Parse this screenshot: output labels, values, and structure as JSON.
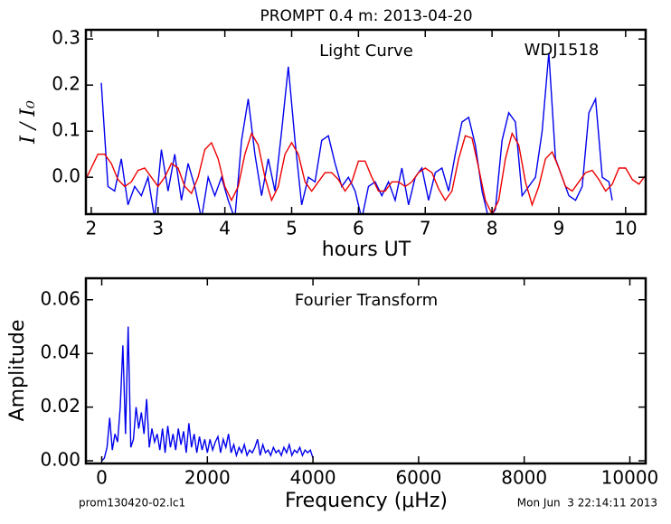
{
  "title": "PROMPT 0.4 m:  2013-04-20",
  "footer": {
    "left": "prom130420-02.lc1",
    "right": "Mon Jun  3 22:14:11 2013"
  },
  "chart_data": [
    {
      "type": "line",
      "annotations": [
        "Light Curve",
        "WDJ1518"
      ],
      "xlabel": "hours UT",
      "ylabel": "I / I₀",
      "xlim": [
        1.92,
        10.3
      ],
      "ylim": [
        -0.08,
        0.32
      ],
      "xticks": [
        2,
        3,
        4,
        5,
        6,
        7,
        8,
        9,
        10
      ],
      "yticks": [
        {
          "value": 0,
          "label": "0.0"
        },
        0.1,
        0.2,
        0.3
      ],
      "series": [
        {
          "color": "#0000ee",
          "x": [
            2.15,
            2.25,
            2.35,
            2.45,
            2.55,
            2.65,
            2.75,
            2.85,
            2.95,
            3.05,
            3.15,
            3.25,
            3.35,
            3.45,
            3.55,
            3.65,
            3.75,
            3.85,
            3.95,
            4.05,
            4.15,
            4.25,
            4.35,
            4.45,
            4.55,
            4.65,
            4.75,
            4.85,
            4.95,
            5.05,
            5.15,
            5.25,
            5.35,
            5.45,
            5.55,
            5.65,
            5.75,
            5.85,
            5.95,
            6.05,
            6.15,
            6.25,
            6.35,
            6.45,
            6.55,
            6.65,
            6.75,
            6.85,
            6.95,
            7.05,
            7.15,
            7.25,
            7.35,
            7.45,
            7.55,
            7.65,
            7.75,
            7.85,
            7.95,
            8.05,
            8.15,
            8.25,
            8.35,
            8.45,
            8.55,
            8.65,
            8.75,
            8.85,
            8.95,
            9.05,
            9.15,
            9.25,
            9.35,
            9.45,
            9.55,
            9.65,
            9.75,
            9.8
          ],
          "values": [
            0.205,
            -0.02,
            -0.03,
            0.04,
            -0.06,
            -0.02,
            -0.04,
            0.0,
            -0.09,
            0.06,
            -0.03,
            0.05,
            -0.05,
            0.03,
            -0.02,
            -0.09,
            0.0,
            -0.04,
            0.0,
            -0.05,
            -0.09,
            0.08,
            0.17,
            0.05,
            -0.04,
            0.04,
            -0.03,
            0.1,
            0.24,
            0.08,
            -0.06,
            0.0,
            -0.01,
            0.08,
            0.09,
            0.03,
            -0.02,
            0.0,
            -0.03,
            -0.09,
            -0.02,
            -0.01,
            -0.04,
            -0.01,
            -0.05,
            0.02,
            -0.06,
            0.0,
            0.02,
            -0.05,
            0.01,
            0.02,
            -0.03,
            0.05,
            0.12,
            0.13,
            0.07,
            -0.03,
            -0.09,
            -0.07,
            0.08,
            0.14,
            0.12,
            -0.04,
            -0.02,
            0.0,
            0.1,
            0.27,
            0.04,
            0.0,
            -0.04,
            -0.05,
            -0.02,
            0.14,
            0.17,
            0.0,
            -0.01,
            -0.05
          ]
        },
        {
          "color": "#ee0000",
          "x": [
            1.9,
            2.0,
            2.1,
            2.2,
            2.3,
            2.4,
            2.5,
            2.6,
            2.7,
            2.8,
            2.9,
            3.0,
            3.1,
            3.2,
            3.3,
            3.4,
            3.5,
            3.6,
            3.7,
            3.8,
            3.9,
            4.0,
            4.1,
            4.2,
            4.3,
            4.4,
            4.5,
            4.6,
            4.7,
            4.8,
            4.9,
            5.0,
            5.1,
            5.2,
            5.3,
            5.4,
            5.5,
            5.6,
            5.7,
            5.8,
            5.9,
            6.0,
            6.1,
            6.2,
            6.3,
            6.4,
            6.5,
            6.6,
            6.7,
            6.8,
            6.9,
            7.0,
            7.1,
            7.2,
            7.3,
            7.4,
            7.5,
            7.6,
            7.7,
            7.8,
            7.9,
            8.0,
            8.1,
            8.2,
            8.3,
            8.4,
            8.5,
            8.6,
            8.7,
            8.8,
            8.9,
            9.0,
            9.1,
            9.2,
            9.3,
            9.4,
            9.5,
            9.6,
            9.7,
            9.8,
            9.9,
            10.0,
            10.1,
            10.2,
            10.3
          ],
          "values": [
            -0.01,
            0.02,
            0.05,
            0.05,
            0.03,
            -0.005,
            -0.02,
            -0.01,
            0.015,
            0.02,
            0.0,
            -0.02,
            0.0,
            0.03,
            0.02,
            -0.02,
            -0.035,
            0.0,
            0.06,
            0.075,
            0.04,
            -0.02,
            -0.05,
            -0.02,
            0.05,
            0.095,
            0.07,
            0.0,
            -0.05,
            -0.02,
            0.05,
            0.075,
            0.05,
            -0.01,
            -0.03,
            -0.01,
            0.01,
            0.01,
            -0.005,
            -0.03,
            -0.01,
            0.035,
            0.035,
            0.0,
            -0.03,
            -0.03,
            -0.01,
            -0.01,
            -0.02,
            -0.01,
            0.01,
            0.02,
            0.01,
            -0.025,
            -0.05,
            -0.03,
            0.04,
            0.09,
            0.085,
            0.02,
            -0.05,
            -0.08,
            -0.05,
            0.04,
            0.095,
            0.07,
            -0.01,
            -0.06,
            -0.02,
            0.04,
            0.055,
            0.02,
            -0.02,
            -0.03,
            -0.01,
            0.01,
            0.015,
            -0.005,
            -0.03,
            -0.015,
            0.02,
            0.02,
            -0.005,
            -0.015,
            0.005
          ]
        }
      ]
    },
    {
      "type": "line",
      "annotations": [
        "Fourier Transform"
      ],
      "xlabel": "Frequency (μHz)",
      "ylabel": "Amplitude",
      "xlim": [
        -300,
        10300
      ],
      "ylim": [
        -0.001,
        0.068
      ],
      "xticks": [
        0,
        2000,
        4000,
        6000,
        8000,
        10000
      ],
      "yticks": [
        {
          "value": 0,
          "label": "0.00"
        },
        {
          "value": 0.02,
          "label": "0.02"
        },
        {
          "value": 0.04,
          "label": "0.04"
        },
        {
          "value": 0.06,
          "label": "0.06"
        }
      ],
      "series": [
        {
          "color": "#0000ee",
          "x": [
            0,
            50,
            100,
            150,
            200,
            250,
            300,
            350,
            400,
            450,
            500,
            550,
            600,
            650,
            700,
            750,
            800,
            850,
            900,
            950,
            1000,
            1050,
            1100,
            1150,
            1200,
            1250,
            1300,
            1350,
            1400,
            1450,
            1500,
            1550,
            1600,
            1650,
            1700,
            1750,
            1800,
            1850,
            1900,
            1950,
            2000,
            2050,
            2100,
            2150,
            2200,
            2250,
            2300,
            2350,
            2400,
            2450,
            2500,
            2550,
            2600,
            2650,
            2700,
            2750,
            2800,
            2850,
            2900,
            2950,
            3000,
            3050,
            3100,
            3150,
            3200,
            3250,
            3300,
            3350,
            3400,
            3450,
            3500,
            3550,
            3600,
            3650,
            3700,
            3750,
            3800,
            3850,
            3900,
            3950,
            4000
          ],
          "values": [
            0.0,
            0.001,
            0.005,
            0.016,
            0.004,
            0.01,
            0.007,
            0.02,
            0.043,
            0.01,
            0.05,
            0.005,
            0.008,
            0.02,
            0.012,
            0.018,
            0.01,
            0.023,
            0.005,
            0.012,
            0.007,
            0.01,
            0.004,
            0.012,
            0.003,
            0.013,
            0.005,
            0.01,
            0.004,
            0.012,
            0.006,
            0.011,
            0.003,
            0.014,
            0.005,
            0.01,
            0.003,
            0.009,
            0.004,
            0.008,
            0.003,
            0.008,
            0.004,
            0.007,
            0.009,
            0.003,
            0.008,
            0.005,
            0.01,
            0.003,
            0.006,
            0.002,
            0.005,
            0.003,
            0.006,
            0.002,
            0.004,
            0.003,
            0.005,
            0.008,
            0.002,
            0.006,
            0.003,
            0.004,
            0.002,
            0.005,
            0.003,
            0.004,
            0.002,
            0.005,
            0.003,
            0.006,
            0.002,
            0.004,
            0.003,
            0.005,
            0.002,
            0.004,
            0.003,
            0.004,
            0.001
          ]
        }
      ]
    }
  ]
}
